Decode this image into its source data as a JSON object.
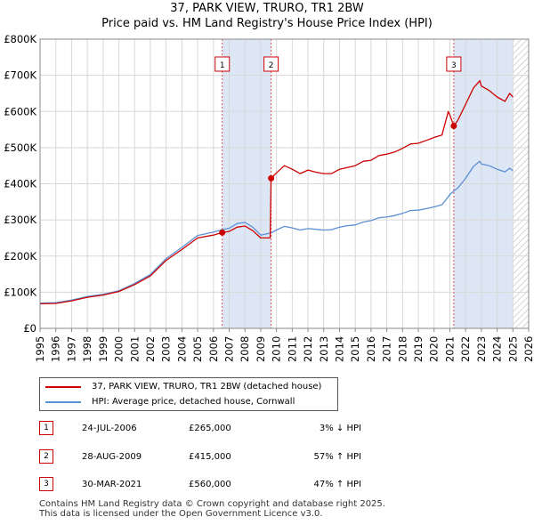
{
  "title_line1": "37, PARK VIEW, TRURO, TR1 2BW",
  "title_line2": "Price paid vs. HM Land Registry's House Price Index (HPI)",
  "colors": {
    "property": "#cc0000",
    "hpi": "#5b8fd6",
    "shade": "#dde6f5",
    "marker_line": "#dd5555",
    "grid": "#d8d8d8"
  },
  "chart_data": {
    "type": "line",
    "title": "37, PARK VIEW, TRURO, TR1 2BW — Price paid vs. HM Land Registry's House Price Index (HPI)",
    "xlabel": "",
    "ylabel": "",
    "xlim": [
      1995,
      2026
    ],
    "ylim": [
      0,
      800000
    ],
    "y_ticks": [
      0,
      100000,
      200000,
      300000,
      400000,
      500000,
      600000,
      700000,
      800000
    ],
    "y_tick_labels": [
      "£0",
      "£100K",
      "£200K",
      "£300K",
      "£400K",
      "£500K",
      "£600K",
      "£700K",
      "£800K"
    ],
    "x_ticks": [
      1995,
      1996,
      1997,
      1998,
      1999,
      2000,
      2001,
      2002,
      2003,
      2004,
      2005,
      2006,
      2007,
      2008,
      2009,
      2010,
      2011,
      2012,
      2013,
      2014,
      2015,
      2016,
      2017,
      2018,
      2019,
      2020,
      2021,
      2022,
      2023,
      2024,
      2025,
      2026
    ],
    "x_tick_labels": [
      "1995",
      "1996",
      "1997",
      "1998",
      "1999",
      "2000",
      "2001",
      "2002",
      "2003",
      "2004",
      "2005",
      "2006",
      "2007",
      "2008",
      "2009",
      "2010",
      "2011",
      "2012",
      "2013",
      "2014",
      "2015",
      "2016",
      "2017",
      "2018",
      "2019",
      "2020",
      "2021",
      "2022",
      "2023",
      "2024",
      "2025",
      "2026"
    ],
    "grid": true,
    "shaded_periods": [
      [
        2006.56,
        2009.66
      ],
      [
        2021.25,
        2025.0
      ]
    ],
    "hatched_region": [
      2025.0,
      2026.0
    ],
    "series": [
      {
        "name": "37, PARK VIEW, TRURO, TR1 2BW (detached house)",
        "color": "#cc0000",
        "points": [
          [
            1995.0,
            68000
          ],
          [
            1996.0,
            69000
          ],
          [
            1997.0,
            76000
          ],
          [
            1998.0,
            86000
          ],
          [
            1999.0,
            92000
          ],
          [
            2000.0,
            102000
          ],
          [
            2001.0,
            121000
          ],
          [
            2002.0,
            145000
          ],
          [
            2003.0,
            188000
          ],
          [
            2004.0,
            218000
          ],
          [
            2005.0,
            250000
          ],
          [
            2006.0,
            258000
          ],
          [
            2006.56,
            265000
          ],
          [
            2007.0,
            268000
          ],
          [
            2007.5,
            280000
          ],
          [
            2008.0,
            283000
          ],
          [
            2008.5,
            270000
          ],
          [
            2009.0,
            250000
          ],
          [
            2009.6,
            250000
          ],
          [
            2009.66,
            415000
          ],
          [
            2010.0,
            430000
          ],
          [
            2010.5,
            450000
          ],
          [
            2011.0,
            440000
          ],
          [
            2011.5,
            428000
          ],
          [
            2012.0,
            438000
          ],
          [
            2012.5,
            432000
          ],
          [
            2013.0,
            428000
          ],
          [
            2013.5,
            428000
          ],
          [
            2014.0,
            440000
          ],
          [
            2014.5,
            445000
          ],
          [
            2015.0,
            450000
          ],
          [
            2015.5,
            462000
          ],
          [
            2016.0,
            465000
          ],
          [
            2016.5,
            478000
          ],
          [
            2017.0,
            482000
          ],
          [
            2017.5,
            488000
          ],
          [
            2018.0,
            498000
          ],
          [
            2018.5,
            510000
          ],
          [
            2019.0,
            512000
          ],
          [
            2019.5,
            520000
          ],
          [
            2020.0,
            528000
          ],
          [
            2020.5,
            535000
          ],
          [
            2020.9,
            600000
          ],
          [
            2021.0,
            590000
          ],
          [
            2021.25,
            560000
          ],
          [
            2021.5,
            575000
          ],
          [
            2022.0,
            620000
          ],
          [
            2022.5,
            665000
          ],
          [
            2022.9,
            685000
          ],
          [
            2023.0,
            670000
          ],
          [
            2023.5,
            658000
          ],
          [
            2024.0,
            640000
          ],
          [
            2024.5,
            628000
          ],
          [
            2024.8,
            650000
          ],
          [
            2025.0,
            640000
          ]
        ]
      },
      {
        "name": "HPI: Average price, detached house, Cornwall",
        "color": "#5b8fd6",
        "points": [
          [
            1995.0,
            70000
          ],
          [
            1996.0,
            71000
          ],
          [
            1997.0,
            78000
          ],
          [
            1998.0,
            88000
          ],
          [
            1999.0,
            94000
          ],
          [
            2000.0,
            104000
          ],
          [
            2001.0,
            124000
          ],
          [
            2002.0,
            149000
          ],
          [
            2003.0,
            193000
          ],
          [
            2004.0,
            224000
          ],
          [
            2005.0,
            257000
          ],
          [
            2006.0,
            266000
          ],
          [
            2006.56,
            273000
          ],
          [
            2007.0,
            277000
          ],
          [
            2007.5,
            290000
          ],
          [
            2008.0,
            293000
          ],
          [
            2008.5,
            280000
          ],
          [
            2009.0,
            258000
          ],
          [
            2009.66,
            264000
          ],
          [
            2010.0,
            272000
          ],
          [
            2010.5,
            282000
          ],
          [
            2011.0,
            278000
          ],
          [
            2011.5,
            272000
          ],
          [
            2012.0,
            276000
          ],
          [
            2012.5,
            274000
          ],
          [
            2013.0,
            272000
          ],
          [
            2013.5,
            273000
          ],
          [
            2014.0,
            280000
          ],
          [
            2014.5,
            284000
          ],
          [
            2015.0,
            286000
          ],
          [
            2015.5,
            294000
          ],
          [
            2016.0,
            298000
          ],
          [
            2016.5,
            306000
          ],
          [
            2017.0,
            308000
          ],
          [
            2017.5,
            312000
          ],
          [
            2018.0,
            318000
          ],
          [
            2018.5,
            326000
          ],
          [
            2019.0,
            327000
          ],
          [
            2019.5,
            331000
          ],
          [
            2020.0,
            336000
          ],
          [
            2020.5,
            342000
          ],
          [
            2021.0,
            370000
          ],
          [
            2021.25,
            380000
          ],
          [
            2021.5,
            388000
          ],
          [
            2022.0,
            415000
          ],
          [
            2022.5,
            448000
          ],
          [
            2022.9,
            462000
          ],
          [
            2023.0,
            455000
          ],
          [
            2023.5,
            450000
          ],
          [
            2024.0,
            440000
          ],
          [
            2024.5,
            433000
          ],
          [
            2024.8,
            443000
          ],
          [
            2025.0,
            436000
          ]
        ]
      }
    ],
    "sale_markers": [
      {
        "label": "1",
        "x": 2006.56,
        "y": 265000
      },
      {
        "label": "2",
        "x": 2009.66,
        "y": 415000
      },
      {
        "label": "3",
        "x": 2021.25,
        "y": 560000
      }
    ]
  },
  "legend": {
    "property_label": "37, PARK VIEW, TRURO, TR1 2BW (detached house)",
    "hpi_label": "HPI: Average price, detached house, Cornwall"
  },
  "transactions": [
    {
      "num": "1",
      "date": "24-JUL-2006",
      "price": "£265,000",
      "hpi": "3% ↓ HPI"
    },
    {
      "num": "2",
      "date": "28-AUG-2009",
      "price": "£415,000",
      "hpi": "57% ↑ HPI"
    },
    {
      "num": "3",
      "date": "30-MAR-2021",
      "price": "£560,000",
      "hpi": "47% ↑ HPI"
    }
  ],
  "footer": {
    "line1": "Contains HM Land Registry data © Crown copyright and database right 2025.",
    "line2": "This data is licensed under the Open Government Licence v3.0."
  }
}
